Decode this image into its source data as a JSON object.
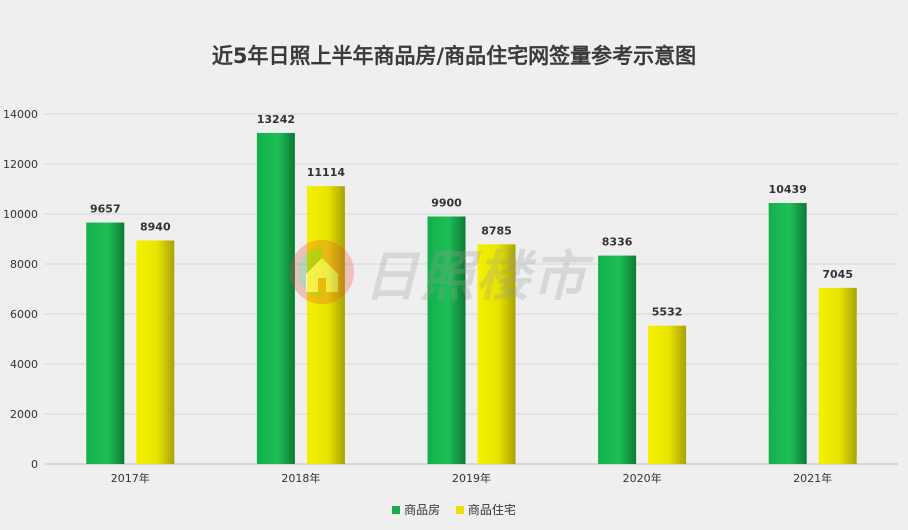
{
  "chart_data": {
    "type": "bar",
    "title": "近5年日照上半年商品房/商品住宅网签量参考示意图",
    "categories": [
      "2017年",
      "2018年",
      "2019年",
      "2020年",
      "2021年"
    ],
    "series": [
      {
        "name": "商品房",
        "values": [
          9657,
          13242,
          9900,
          8336,
          10439
        ],
        "color": "#1aaa4e"
      },
      {
        "name": "商品住宅",
        "values": [
          8940,
          11114,
          8785,
          5532,
          7045
        ],
        "color": "#e8e000"
      }
    ],
    "ylim": [
      0,
      14000
    ],
    "yticks": [
      0,
      2000,
      4000,
      6000,
      8000,
      10000,
      12000,
      14000
    ],
    "grid": true,
    "legend": "bottom"
  },
  "watermark": {
    "text": "日照楼市",
    "icon": "house-logo-icon"
  }
}
